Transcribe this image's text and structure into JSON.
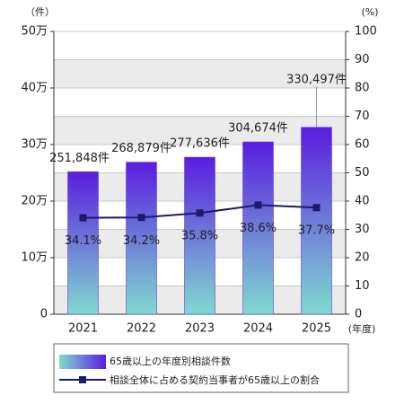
{
  "chart_data": {
    "type": "bar",
    "y_label": "（件）",
    "y2_label": "(%)",
    "x_label": "(年度)",
    "categories": [
      "2021",
      "2022",
      "2023",
      "2024",
      "2025"
    ],
    "series": [
      {
        "name": "65歳以上の年度別相談件数",
        "type": "bar",
        "colors": [
          "#5a1de0",
          "#80dad0"
        ],
        "values": [
          251848,
          268879,
          277636,
          304674,
          330497
        ],
        "value_labels": [
          "251,848件",
          "268,879件",
          "277,636件",
          "304,674件",
          "330,497件"
        ]
      },
      {
        "name": "相談全体に占める契約当事者が65歳以上の割合",
        "type": "line",
        "axis": "y2",
        "color": "#1b1b6b",
        "values": [
          34.1,
          34.2,
          35.8,
          38.6,
          37.7
        ],
        "value_labels": [
          "34.1%",
          "34.2%",
          "35.8%",
          "38.6%",
          "37.7%"
        ]
      }
    ],
    "ylim": [
      0,
      500000
    ],
    "yticks": [
      0,
      {
        "value": 100000,
        "label": "10万"
      },
      {
        "value": 200000,
        "label": "20万"
      },
      {
        "value": 300000,
        "label": "30万"
      },
      {
        "value": 400000,
        "label": "40万"
      },
      {
        "value": 500000,
        "label": "50万"
      }
    ],
    "y2lim": [
      0,
      100
    ],
    "y2ticks": [
      0,
      10,
      20,
      30,
      40,
      50,
      60,
      70,
      80,
      90,
      100
    ],
    "grid": true,
    "band_color": "#ebebeb"
  }
}
